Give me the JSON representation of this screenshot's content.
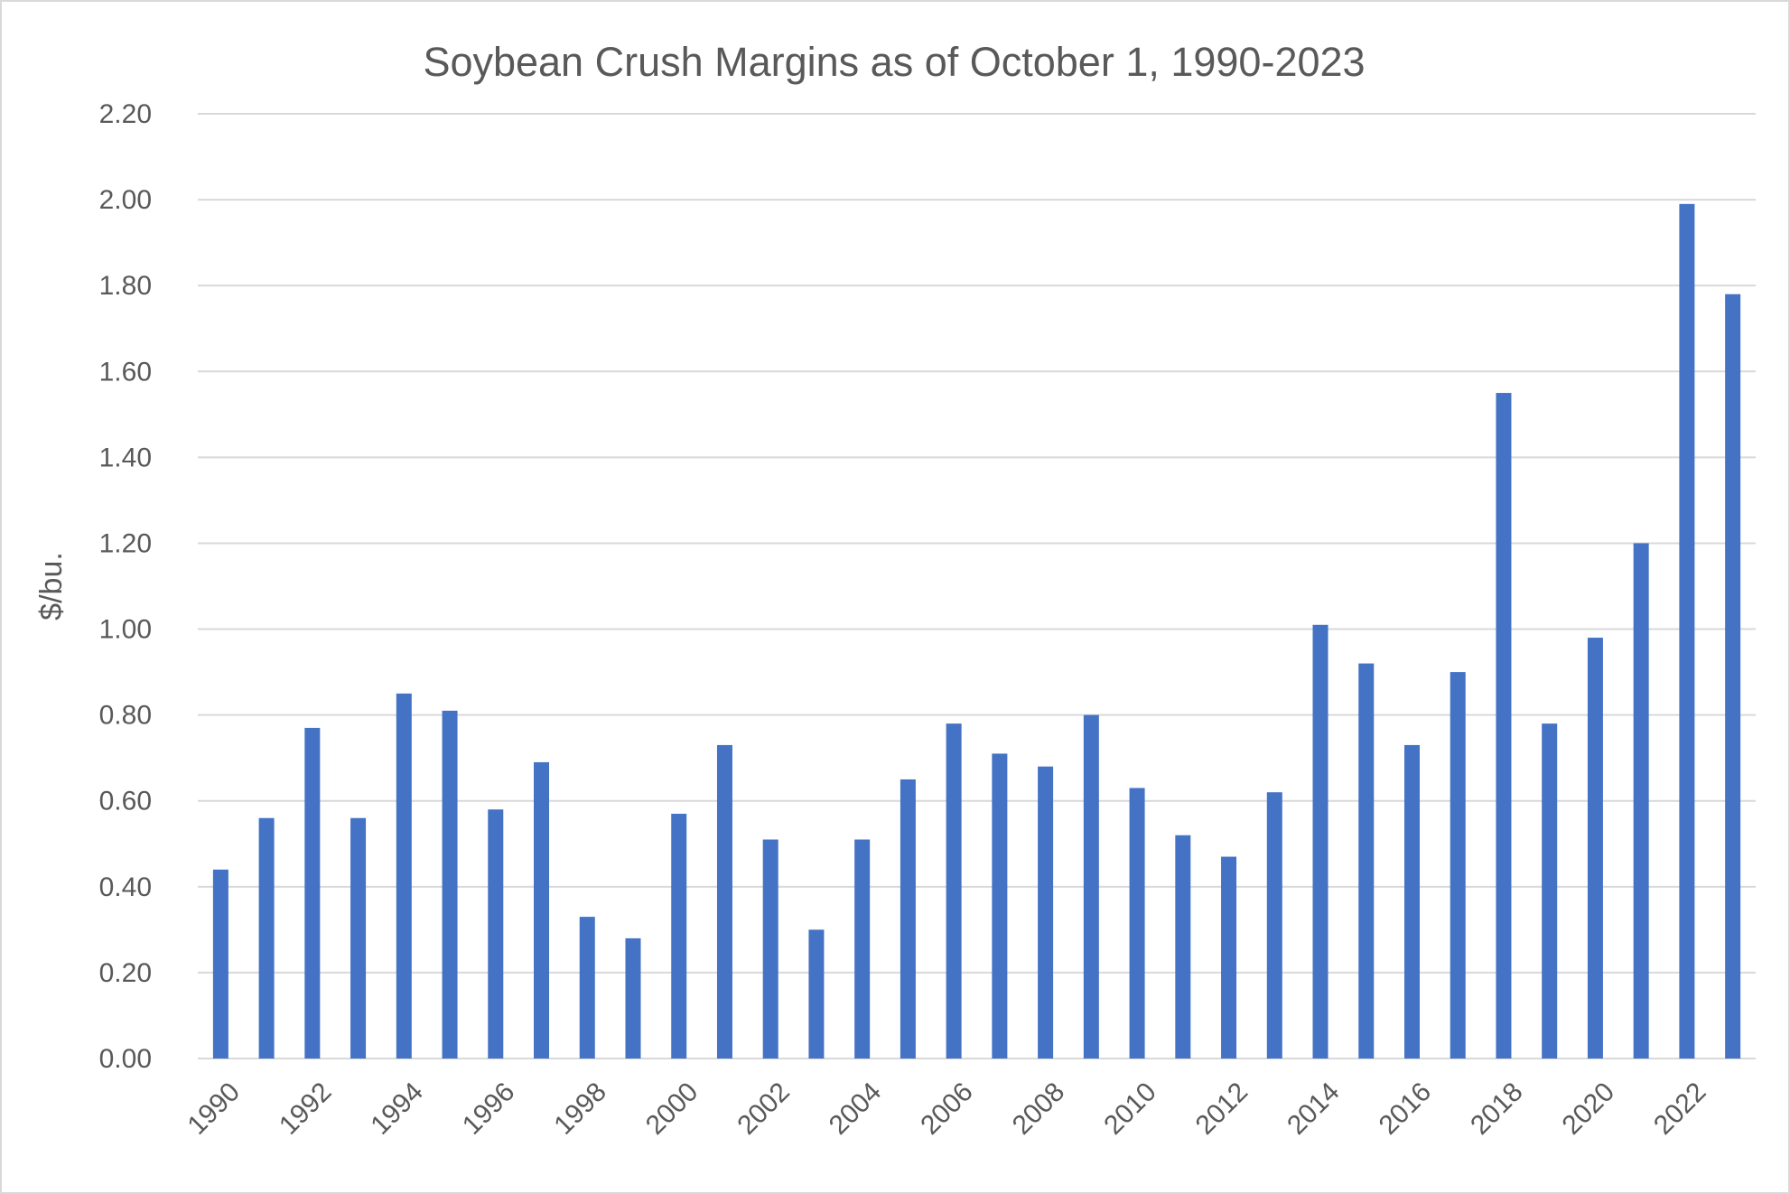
{
  "chart_data": {
    "type": "bar",
    "title": "Soybean Crush Margins as of October 1, 1990-2023",
    "xlabel": "",
    "ylabel": "$/bu.",
    "ylim": [
      0,
      2.2
    ],
    "yticks": [
      "0.00",
      "0.20",
      "0.40",
      "0.60",
      "0.80",
      "1.00",
      "1.20",
      "1.40",
      "1.60",
      "1.80",
      "2.00",
      "2.20"
    ],
    "grid": true,
    "bar_color": "#4472C4",
    "categories": [
      1990,
      1991,
      1992,
      1993,
      1994,
      1995,
      1996,
      1997,
      1998,
      1999,
      2000,
      2001,
      2002,
      2003,
      2004,
      2005,
      2006,
      2007,
      2008,
      2009,
      2010,
      2011,
      2012,
      2013,
      2014,
      2015,
      2016,
      2017,
      2018,
      2019,
      2020,
      2021,
      2022,
      2023
    ],
    "xtick_labels": [
      "1990",
      "1992",
      "1994",
      "1996",
      "1998",
      "2000",
      "2002",
      "2004",
      "2006",
      "2008",
      "2010",
      "2012",
      "2014",
      "2016",
      "2018",
      "2020",
      "2022"
    ],
    "values": [
      0.44,
      0.56,
      0.77,
      0.56,
      0.85,
      0.81,
      0.58,
      0.69,
      0.33,
      0.28,
      0.57,
      0.73,
      0.51,
      0.3,
      0.51,
      0.65,
      0.78,
      0.71,
      0.68,
      0.8,
      0.63,
      0.52,
      0.47,
      0.62,
      1.01,
      0.92,
      0.73,
      0.9,
      1.55,
      0.78,
      0.98,
      1.2,
      1.99,
      1.78
    ]
  }
}
